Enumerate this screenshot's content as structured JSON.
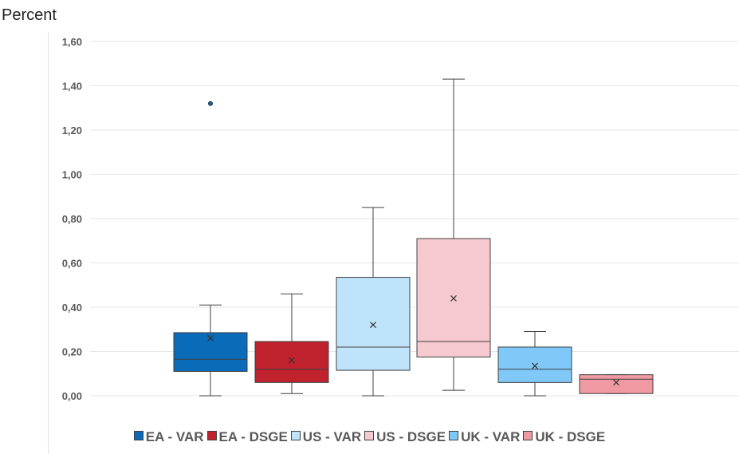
{
  "chart_data": {
    "type": "box",
    "ylabel": "Percent",
    "ylim": [
      0,
      1.6
    ],
    "yticks": [
      "0,00",
      "0,20",
      "0,40",
      "0,60",
      "0,80",
      "1,00",
      "1,20",
      "1,40",
      "1,60"
    ],
    "ytick_values": [
      0,
      0.2,
      0.4,
      0.6,
      0.8,
      1.0,
      1.2,
      1.4,
      1.6
    ],
    "grid": true,
    "legend_position": "bottom",
    "series": [
      {
        "name": "EA - VAR",
        "color": "#0a6bb8",
        "min": 0.0,
        "q1": 0.11,
        "median": 0.165,
        "q3": 0.285,
        "max": 0.41,
        "mean": 0.26,
        "outliers": [
          1.32
        ]
      },
      {
        "name": "EA - DSGE",
        "color": "#c0222e",
        "min": 0.01,
        "q1": 0.06,
        "median": 0.12,
        "q3": 0.245,
        "max": 0.46,
        "mean": 0.16,
        "outliers": []
      },
      {
        "name": "US - VAR",
        "color": "#bfe3fb",
        "min": 0.0,
        "q1": 0.115,
        "median": 0.22,
        "q3": 0.535,
        "max": 0.85,
        "mean": 0.32,
        "outliers": []
      },
      {
        "name": "US - DSGE",
        "color": "#f6c9d0",
        "min": 0.025,
        "q1": 0.175,
        "median": 0.245,
        "q3": 0.71,
        "max": 1.43,
        "mean": 0.44,
        "outliers": []
      },
      {
        "name": "UK - VAR",
        "color": "#7fc8f8",
        "min": 0.0,
        "q1": 0.06,
        "median": 0.12,
        "q3": 0.22,
        "max": 0.29,
        "mean": 0.135,
        "outliers": []
      },
      {
        "name": "UK - DSGE",
        "color": "#ef9aa2",
        "min": 0.01,
        "q1": 0.01,
        "median": 0.075,
        "q3": 0.095,
        "max": 0.095,
        "mean": 0.06,
        "outliers": []
      }
    ]
  }
}
